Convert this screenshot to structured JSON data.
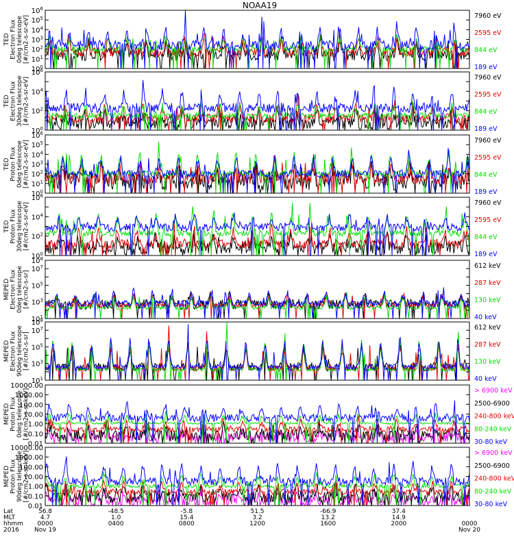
{
  "title": "NOAA19",
  "colors": {
    "black": "#000000",
    "blue": "#0000ff",
    "red": "#e00000",
    "green": "#00dd00",
    "magenta": "#ff00ff"
  },
  "chart_data": [
    {
      "type": "line",
      "ylabel_lines": [
        "TED",
        "Electron Flux",
        "0deg telescope",
        "[#/cm2-s-sr-eV]"
      ],
      "yscale": "log",
      "ylim": [
        1,
        1000000
      ],
      "yticks": [
        "10^0",
        "10^1",
        "10^2",
        "10^3",
        "10^4",
        "10^5",
        "10^6"
      ],
      "series": [
        {
          "name": "7960 eV",
          "color": "black",
          "base": 1.4,
          "amp": 1.4,
          "noise": 0.6
        },
        {
          "name": "2595 eV",
          "color": "red",
          "base": 1.7,
          "amp": 1.6,
          "noise": 0.5
        },
        {
          "name": "844 eV",
          "color": "green",
          "base": 2.0,
          "amp": 1.4,
          "noise": 0.3
        },
        {
          "name": "189 eV",
          "color": "blue",
          "base": 2.4,
          "amp": 2.0,
          "noise": 0.5
        }
      ]
    },
    {
      "type": "line",
      "ylabel_lines": [
        "TED",
        "Electron Flux",
        "30deg telescope",
        "[#/cm2-s-sr-eV]"
      ],
      "yscale": "log",
      "ylim": [
        1,
        1000000
      ],
      "yticks": [
        "10^0",
        "",
        "10^2",
        "",
        "10^4",
        "",
        "10^6"
      ],
      "series": [
        {
          "name": "7960 eV",
          "color": "black",
          "base": 0.8,
          "amp": 1.2,
          "noise": 0.7
        },
        {
          "name": "2595 eV",
          "color": "red",
          "base": 1.2,
          "amp": 1.5,
          "noise": 0.5
        },
        {
          "name": "844 eV",
          "color": "green",
          "base": 1.5,
          "amp": 1.3,
          "noise": 0.3
        },
        {
          "name": "189 eV",
          "color": "blue",
          "base": 2.3,
          "amp": 1.8,
          "noise": 0.5
        }
      ]
    },
    {
      "type": "line",
      "ylabel_lines": [
        "TED",
        "Proton Flux",
        "0deg telescope",
        "[#/cm2-s-sr-eV]"
      ],
      "yscale": "log",
      "ylim": [
        1,
        1000000
      ],
      "yticks": [
        "10^0",
        "10^1",
        "10^2",
        "10^3",
        "10^4",
        "10^5",
        "10^6"
      ],
      "series": [
        {
          "name": "7960 eV",
          "color": "black",
          "base": 1.2,
          "amp": 1.5,
          "noise": 0.9
        },
        {
          "name": "2595 eV",
          "color": "red",
          "base": 1.5,
          "amp": 1.5,
          "noise": 0.6
        },
        {
          "name": "844 eV",
          "color": "green",
          "base": 2.0,
          "amp": 2.3,
          "noise": 0.3
        },
        {
          "name": "189 eV",
          "color": "blue",
          "base": 2.0,
          "amp": 2.0,
          "noise": 0.4
        }
      ]
    },
    {
      "type": "line",
      "ylabel_lines": [
        "TED",
        "Proton Flux",
        "30deg telescope",
        "[#/cm2-s-sr-eV]"
      ],
      "yscale": "log",
      "ylim": [
        1,
        1000000
      ],
      "yticks": [
        "10^0",
        "",
        "10^2",
        "",
        "10^4",
        "",
        "10^6"
      ],
      "series": [
        {
          "name": "7960 eV",
          "color": "black",
          "base": 0.8,
          "amp": 1.3,
          "noise": 0.7
        },
        {
          "name": "2595 eV",
          "color": "red",
          "base": 1.2,
          "amp": 1.6,
          "noise": 0.5
        },
        {
          "name": "844 eV",
          "color": "green",
          "base": 2.3,
          "amp": 2.3,
          "noise": 0.3
        },
        {
          "name": "189 eV",
          "color": "blue",
          "base": 2.9,
          "amp": 1.3,
          "noise": 0.4
        }
      ]
    },
    {
      "type": "line",
      "ylabel_lines": [
        "MEPED",
        "Electron Flux",
        "0deg telescope",
        "[#/cm2-s-sr]"
      ],
      "yscale": "log",
      "ylim": [
        10,
        100000000
      ],
      "yticks": [
        "10^1",
        "",
        "10^3",
        "",
        "10^5",
        "",
        "10^7",
        "10^8"
      ],
      "series": [
        {
          "name": "612 keV",
          "color": "black",
          "base": 2.7,
          "amp": 1.2,
          "noise": 0.6
        },
        {
          "name": "287 keV",
          "color": "red",
          "base": 2.6,
          "amp": 1.5,
          "noise": 0.3
        },
        {
          "name": "130 keV",
          "color": "green",
          "base": 2.3,
          "amp": 1.6,
          "noise": 0.2
        },
        {
          "name": "40 keV",
          "color": "blue",
          "base": 2.8,
          "amp": 1.6,
          "noise": 0.4
        }
      ]
    },
    {
      "type": "line",
      "ylabel_lines": [
        "MEPED",
        "Electron Flux",
        "90deg telescope",
        "[#/cm2-s-sr]"
      ],
      "yscale": "log",
      "ylim": [
        10,
        100000000
      ],
      "yticks": [
        "10^1",
        "",
        "10^3",
        "",
        "10^5",
        "",
        "10^7",
        "10^8"
      ],
      "series": [
        {
          "name": "612 keV",
          "color": "black",
          "base": 2.6,
          "amp": 2.8,
          "noise": 0.5
        },
        {
          "name": "287 keV",
          "color": "red",
          "base": 2.4,
          "amp": 3.4,
          "noise": 0.3
        },
        {
          "name": "130 keV",
          "color": "green",
          "base": 2.3,
          "amp": 3.7,
          "noise": 0.2
        },
        {
          "name": "40 keV",
          "color": "blue",
          "base": 2.6,
          "amp": 3.6,
          "noise": 0.3
        }
      ]
    },
    {
      "type": "line",
      "ylabel_lines": [
        "MEPED",
        "Proton Flux",
        "0deg telescope",
        "[#/cm2-s-sr-keV]"
      ],
      "yscale": "log",
      "ylim": [
        0.01,
        10000
      ],
      "yticks": [
        "0.01",
        "0.10",
        "1.00",
        "10.00",
        "100.00",
        "1000.00",
        "10000.00"
      ],
      "series": [
        {
          "name": "> 6900 keV",
          "color": "magenta",
          "base": -1.4,
          "amp": 0.8,
          "noise": 0.5
        },
        {
          "name": "2500-6900",
          "color": "black",
          "base": -1.2,
          "amp": 1.0,
          "noise": 0.6
        },
        {
          "name": "240-800 keV",
          "color": "red",
          "base": -0.6,
          "amp": 1.1,
          "noise": 0.3
        },
        {
          "name": "80-240 keV",
          "color": "green",
          "base": 0.05,
          "amp": 1.0,
          "noise": 0.1
        },
        {
          "name": "30-80 keV",
          "color": "blue",
          "base": 0.6,
          "amp": 1.5,
          "noise": 0.4
        }
      ]
    },
    {
      "type": "line",
      "ylabel_lines": [
        "MEPED",
        "Proton Flux",
        "90deg telescope",
        "[#/cm2-s-sr-keV]"
      ],
      "yscale": "log",
      "ylim": [
        0.01,
        10000
      ],
      "yticks": [
        "0.01",
        "0.10",
        "1.00",
        "10.00",
        "100.00",
        "1000.00",
        "10000.00"
      ],
      "series": [
        {
          "name": "> 6900 keV",
          "color": "magenta",
          "base": -1.5,
          "amp": 0.9,
          "noise": 0.5
        },
        {
          "name": "2500-6900",
          "color": "black",
          "base": -1.1,
          "amp": 1.0,
          "noise": 0.6
        },
        {
          "name": "240-800 keV",
          "color": "red",
          "base": -0.6,
          "amp": 1.1,
          "noise": 0.3
        },
        {
          "name": "80-240 keV",
          "color": "green",
          "base": 0.0,
          "amp": 1.3,
          "noise": 0.2
        },
        {
          "name": "30-80 keV",
          "color": "blue",
          "base": 0.5,
          "amp": 2.0,
          "noise": 0.4
        }
      ]
    }
  ],
  "x_axis": {
    "row_labels": [
      "Lat",
      "MLT",
      "hhmm",
      "2016"
    ],
    "ticks": [
      {
        "lat": "56.8",
        "mlt": "4.7",
        "hhmm": "0000",
        "date": "Nov 19"
      },
      {
        "lat": "-48.5",
        "mlt": "1.0",
        "hhmm": "0400",
        "date": ""
      },
      {
        "lat": "-5.8",
        "mlt": "15.4",
        "hhmm": "0800",
        "date": ""
      },
      {
        "lat": "51.5",
        "mlt": "3.2",
        "hhmm": "1200",
        "date": ""
      },
      {
        "lat": "-66.9",
        "mlt": "13.2",
        "hhmm": "1600",
        "date": ""
      },
      {
        "lat": "37.4",
        "mlt": "14.9",
        "hhmm": "2000",
        "date": ""
      },
      {
        "lat": "",
        "mlt": "",
        "hhmm": "0000",
        "date": "Nov 20"
      }
    ]
  }
}
